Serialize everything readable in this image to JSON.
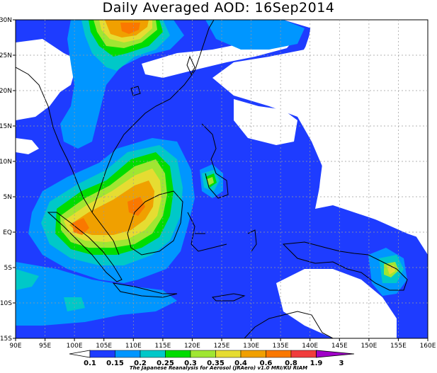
{
  "title": "Daily Averaged AOD: 16Sep2014",
  "credit": "The Japanese Reanalysis for Aerosol (JRAero) v1.0 MRI/KU RIAM",
  "longitude_labels": [
    "90E",
    "95E",
    "100E",
    "105E",
    "110E",
    "115E",
    "120E",
    "125E",
    "130E",
    "135E",
    "140E",
    "145E",
    "150E",
    "155E",
    "160E"
  ],
  "latitude_labels": [
    "30N",
    "25N",
    "20N",
    "15N",
    "10N",
    "5N",
    "EQ",
    "5S",
    "10S",
    "15S"
  ],
  "colorbar": {
    "labels": [
      "0.1",
      "0.15",
      "0.2",
      "0.25",
      "0.3",
      "0.35",
      "0.4",
      "0.6",
      "0.8",
      "1.9",
      "3"
    ],
    "colors": [
      "#ffffff",
      "#1e3cff",
      "#0096ff",
      "#00c8c8",
      "#00dc00",
      "#a0e632",
      "#e6dc32",
      "#f0a000",
      "#fa7800",
      "#f03c3c",
      "#a000c8"
    ]
  },
  "shading": {
    "background": "#ffffff",
    "level_015_color": "#1e3cff",
    "level_02_color": "#0096ff",
    "level_025_color": "#00c8c8",
    "level_03_color": "#00dc00",
    "level_035_color": "#a0e632",
    "level_04_color": "#e6dc32",
    "level_06_color": "#f0a000",
    "level_08_color": "#fa7800"
  }
}
